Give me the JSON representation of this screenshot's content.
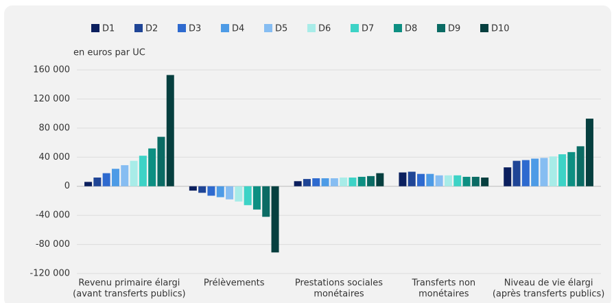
{
  "chart_data": {
    "type": "bar",
    "y_axis_label": "en euros par UC",
    "categories": [
      [
        "Revenu primaire élargi",
        "(avant transferts publics)"
      ],
      [
        "Prélèvements"
      ],
      [
        "Prestations sociales",
        "monétaires"
      ],
      [
        "Transferts non",
        "monétaires"
      ],
      [
        "Niveau de vie élargi",
        "(après transferts publics)"
      ]
    ],
    "series": [
      {
        "name": "D1",
        "color": "#0b1f5e",
        "values": [
          6000,
          -6000,
          7000,
          19000,
          26000
        ]
      },
      {
        "name": "D2",
        "color": "#1f4596",
        "values": [
          12000,
          -9000,
          10000,
          20000,
          35000
        ]
      },
      {
        "name": "D3",
        "color": "#2e6acf",
        "values": [
          18000,
          -13000,
          11000,
          17000,
          36000
        ]
      },
      {
        "name": "D4",
        "color": "#4d9be6",
        "values": [
          24000,
          -15000,
          11000,
          17000,
          38000
        ]
      },
      {
        "name": "D5",
        "color": "#86bdf2",
        "values": [
          29000,
          -18000,
          11000,
          15000,
          39000
        ]
      },
      {
        "name": "D6",
        "color": "#a8ece8",
        "values": [
          35000,
          -21000,
          12000,
          15000,
          41000
        ]
      },
      {
        "name": "D7",
        "color": "#3dd3c6",
        "values": [
          42000,
          -26000,
          12000,
          15000,
          44000
        ]
      },
      {
        "name": "D8",
        "color": "#0d8f82",
        "values": [
          52000,
          -32000,
          13000,
          13000,
          47000
        ]
      },
      {
        "name": "D9",
        "color": "#0b6b64",
        "values": [
          68000,
          -42000,
          14000,
          13000,
          55000
        ]
      },
      {
        "name": "D10",
        "color": "#063f3f",
        "values": [
          153000,
          -91000,
          18000,
          12000,
          93000
        ]
      }
    ],
    "ylim": [
      -120000,
      160000
    ],
    "yticks": [
      {
        "value": -120000,
        "label": "-120 000"
      },
      {
        "value": -80000,
        "label": "-80 000"
      },
      {
        "value": -40000,
        "label": "-40 000"
      },
      0,
      {
        "value": 40000,
        "label": "40 000"
      },
      {
        "value": 80000,
        "label": "80 000"
      },
      {
        "value": 120000,
        "label": "120 000"
      },
      {
        "value": 160000,
        "label": "160 000"
      }
    ],
    "grid": true,
    "legend": "top"
  }
}
